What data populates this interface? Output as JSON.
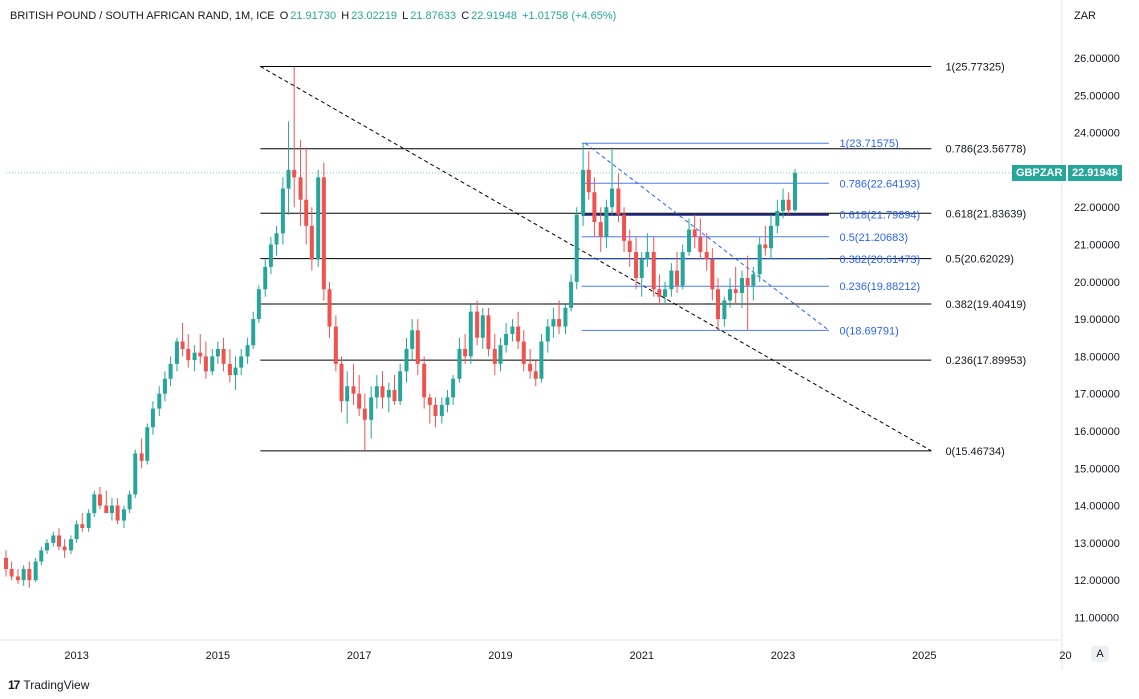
{
  "header": {
    "symbol": "BRITISH POUND / SOUTH AFRICAN RAND, 1M, ICE",
    "o_label": "O",
    "o_value": "21.91730",
    "h_label": "H",
    "h_value": "23.02219",
    "l_label": "L",
    "l_value": "21.87633",
    "c_label": "C",
    "c_value": "22.91948",
    "change": "+1.01758 (+4.65%)"
  },
  "currency_label": "ZAR",
  "auto_button": "A",
  "footer": {
    "brand": "TradingView",
    "logo": "17"
  },
  "price_tag": {
    "symbol": "GBPZAR",
    "price": "22.91948"
  },
  "colors": {
    "up": "#26a69a",
    "down": "#ef5350",
    "fib_outer": "#000000",
    "fib_inner": "#2962ff"
  },
  "chart_data": {
    "type": "candlestick",
    "y_axis": {
      "min": 10.5,
      "max": 26.8,
      "ticks": [
        "26.00000",
        "25.00000",
        "24.00000",
        "23.00000",
        "22.00000",
        "21.00000",
        "20.00000",
        "19.00000",
        "18.00000",
        "17.00000",
        "16.00000",
        "15.00000",
        "14.00000",
        "13.00000",
        "12.00000",
        "11.00000"
      ]
    },
    "x_axis": {
      "ticks": [
        "2013",
        "2015",
        "2017",
        "2019",
        "2021",
        "2023",
        "2025",
        "20"
      ]
    },
    "ohlc": [
      [
        2012.0,
        12.6,
        12.8,
        12.1,
        12.3
      ],
      [
        2012.08,
        12.3,
        12.5,
        12.0,
        12.1
      ],
      [
        2012.17,
        12.1,
        12.3,
        11.9,
        12.0
      ],
      [
        2012.25,
        12.0,
        12.4,
        11.85,
        12.3
      ],
      [
        2012.33,
        12.3,
        12.5,
        11.8,
        12.0
      ],
      [
        2012.42,
        12.0,
        12.6,
        11.95,
        12.5
      ],
      [
        2012.5,
        12.5,
        12.9,
        12.4,
        12.8
      ],
      [
        2012.58,
        12.8,
        13.1,
        12.7,
        13.0
      ],
      [
        2012.67,
        13.0,
        13.3,
        12.9,
        13.2
      ],
      [
        2012.75,
        13.2,
        13.4,
        12.8,
        12.9
      ],
      [
        2012.83,
        12.9,
        13.1,
        12.6,
        12.8
      ],
      [
        2012.92,
        12.8,
        13.2,
        12.7,
        13.1
      ],
      [
        2013.0,
        13.1,
        13.6,
        13.0,
        13.5
      ],
      [
        2013.08,
        13.5,
        13.8,
        13.3,
        13.4
      ],
      [
        2013.17,
        13.4,
        13.9,
        13.3,
        13.8
      ],
      [
        2013.25,
        13.8,
        14.4,
        13.7,
        14.3
      ],
      [
        2013.33,
        14.3,
        14.5,
        13.9,
        14.0
      ],
      [
        2013.42,
        14.0,
        14.4,
        13.8,
        13.8
      ],
      [
        2013.5,
        13.8,
        14.2,
        13.6,
        14.0
      ],
      [
        2013.58,
        14.0,
        14.2,
        13.5,
        13.6
      ],
      [
        2013.67,
        13.6,
        14.0,
        13.4,
        13.9
      ],
      [
        2013.75,
        13.9,
        14.4,
        13.8,
        14.3
      ],
      [
        2013.83,
        14.3,
        15.5,
        14.2,
        15.4
      ],
      [
        2013.92,
        15.4,
        15.8,
        15.0,
        15.2
      ],
      [
        2014.0,
        15.2,
        16.2,
        15.1,
        16.1
      ],
      [
        2014.08,
        16.1,
        16.8,
        15.9,
        16.6
      ],
      [
        2014.17,
        16.6,
        17.2,
        16.4,
        17.0
      ],
      [
        2014.25,
        17.0,
        17.6,
        16.8,
        17.4
      ],
      [
        2014.33,
        17.4,
        18.0,
        17.2,
        17.8
      ],
      [
        2014.42,
        17.8,
        18.5,
        17.6,
        18.4
      ],
      [
        2014.5,
        18.4,
        18.9,
        18.0,
        18.2
      ],
      [
        2014.58,
        18.2,
        18.6,
        17.7,
        17.9
      ],
      [
        2014.67,
        17.9,
        18.3,
        17.6,
        18.1
      ],
      [
        2014.75,
        18.1,
        18.6,
        17.8,
        18.0
      ],
      [
        2014.83,
        18.0,
        18.4,
        17.4,
        17.6
      ],
      [
        2014.92,
        17.6,
        18.2,
        17.5,
        18.0
      ],
      [
        2015.0,
        18.0,
        18.4,
        17.8,
        18.2
      ],
      [
        2015.08,
        18.2,
        18.5,
        17.6,
        17.8
      ],
      [
        2015.17,
        17.8,
        18.2,
        17.3,
        17.5
      ],
      [
        2015.25,
        17.5,
        18.0,
        17.1,
        17.7
      ],
      [
        2015.33,
        17.7,
        18.2,
        17.5,
        18.0
      ],
      [
        2015.42,
        18.0,
        18.5,
        17.8,
        18.3
      ],
      [
        2015.5,
        18.3,
        19.2,
        18.2,
        19.0
      ],
      [
        2015.58,
        19.0,
        19.9,
        18.9,
        19.8
      ],
      [
        2015.67,
        19.8,
        20.6,
        19.6,
        20.4
      ],
      [
        2015.75,
        20.4,
        21.2,
        20.2,
        21.0
      ],
      [
        2015.83,
        21.0,
        21.5,
        20.7,
        21.3
      ],
      [
        2015.92,
        21.3,
        22.8,
        21.0,
        22.5
      ],
      [
        2016.0,
        22.5,
        24.3,
        21.8,
        23.0
      ],
      [
        2016.08,
        23.0,
        25.77,
        22.0,
        22.8
      ],
      [
        2016.17,
        22.8,
        23.8,
        21.5,
        22.2
      ],
      [
        2016.25,
        22.2,
        23.6,
        21.0,
        21.5
      ],
      [
        2016.33,
        21.5,
        22.0,
        20.3,
        20.6
      ],
      [
        2016.42,
        20.6,
        23.0,
        20.4,
        22.8
      ],
      [
        2016.5,
        22.8,
        23.2,
        19.5,
        19.8
      ],
      [
        2016.58,
        19.8,
        20.0,
        18.5,
        18.8
      ],
      [
        2016.67,
        18.8,
        19.1,
        17.6,
        17.8
      ],
      [
        2016.75,
        17.8,
        18.0,
        16.5,
        16.8
      ],
      [
        2016.83,
        16.8,
        17.6,
        16.2,
        17.2
      ],
      [
        2016.92,
        17.2,
        17.8,
        16.7,
        17.0
      ],
      [
        2017.0,
        17.0,
        17.5,
        16.4,
        16.6
      ],
      [
        2017.08,
        16.6,
        17.0,
        15.47,
        16.3
      ],
      [
        2017.17,
        16.3,
        17.2,
        15.8,
        16.9
      ],
      [
        2017.25,
        16.9,
        17.5,
        16.6,
        17.2
      ],
      [
        2017.33,
        17.2,
        17.6,
        16.6,
        16.9
      ],
      [
        2017.42,
        16.9,
        17.3,
        16.5,
        17.1
      ],
      [
        2017.5,
        17.1,
        17.5,
        16.7,
        16.8
      ],
      [
        2017.58,
        16.8,
        17.8,
        16.7,
        17.6
      ],
      [
        2017.67,
        17.6,
        18.5,
        17.3,
        18.2
      ],
      [
        2017.75,
        18.2,
        19.0,
        17.9,
        18.7
      ],
      [
        2017.83,
        18.7,
        19.0,
        17.5,
        17.8
      ],
      [
        2017.92,
        17.8,
        18.0,
        16.6,
        16.9
      ],
      [
        2018.0,
        16.9,
        17.0,
        16.2,
        16.7
      ],
      [
        2018.08,
        16.7,
        16.9,
        16.1,
        16.4
      ],
      [
        2018.17,
        16.4,
        16.9,
        16.2,
        16.7
      ],
      [
        2018.25,
        16.7,
        17.1,
        16.5,
        16.9
      ],
      [
        2018.33,
        16.9,
        17.5,
        16.7,
        17.4
      ],
      [
        2018.42,
        17.4,
        18.5,
        17.3,
        18.2
      ],
      [
        2018.5,
        18.2,
        18.6,
        17.8,
        18.0
      ],
      [
        2018.58,
        18.0,
        19.4,
        17.8,
        19.2
      ],
      [
        2018.67,
        19.2,
        19.5,
        18.3,
        18.5
      ],
      [
        2018.75,
        18.5,
        19.3,
        18.2,
        19.1
      ],
      [
        2018.83,
        19.1,
        19.3,
        18.0,
        18.2
      ],
      [
        2018.92,
        18.2,
        18.6,
        17.5,
        17.8
      ],
      [
        2019.0,
        17.8,
        18.5,
        17.6,
        18.3
      ],
      [
        2019.08,
        18.3,
        18.9,
        18.1,
        18.6
      ],
      [
        2019.17,
        18.6,
        19.0,
        18.4,
        18.8
      ],
      [
        2019.25,
        18.8,
        19.2,
        18.2,
        18.4
      ],
      [
        2019.33,
        18.4,
        18.7,
        17.6,
        17.8
      ],
      [
        2019.42,
        17.8,
        18.2,
        17.4,
        17.6
      ],
      [
        2019.5,
        17.6,
        17.9,
        17.2,
        17.4
      ],
      [
        2019.58,
        17.4,
        18.6,
        17.3,
        18.4
      ],
      [
        2019.67,
        18.4,
        19.0,
        18.1,
        18.8
      ],
      [
        2019.75,
        18.8,
        19.3,
        18.5,
        19.0
      ],
      [
        2019.83,
        19.0,
        19.5,
        18.6,
        18.8
      ],
      [
        2019.92,
        18.8,
        19.4,
        18.6,
        19.3
      ],
      [
        2020.0,
        19.3,
        20.2,
        19.2,
        20.0
      ],
      [
        2020.08,
        20.0,
        22.0,
        19.8,
        21.8
      ],
      [
        2020.17,
        21.8,
        23.72,
        21.5,
        23.0
      ],
      [
        2020.25,
        23.0,
        23.5,
        22.2,
        22.4
      ],
      [
        2020.33,
        22.4,
        22.8,
        21.2,
        21.6
      ],
      [
        2020.42,
        21.6,
        22.0,
        20.8,
        21.2
      ],
      [
        2020.5,
        21.2,
        22.2,
        20.9,
        22.0
      ],
      [
        2020.58,
        22.0,
        23.6,
        21.8,
        22.5
      ],
      [
        2020.67,
        22.5,
        22.9,
        21.6,
        21.8
      ],
      [
        2020.75,
        21.8,
        22.0,
        20.8,
        21.1
      ],
      [
        2020.83,
        21.1,
        21.4,
        20.4,
        20.8
      ],
      [
        2020.92,
        20.8,
        21.2,
        19.8,
        20.1
      ],
      [
        2021.0,
        20.1,
        20.8,
        19.6,
        20.6
      ],
      [
        2021.08,
        20.6,
        21.3,
        20.4,
        20.8
      ],
      [
        2021.17,
        20.8,
        21.2,
        19.6,
        19.8
      ],
      [
        2021.25,
        19.8,
        20.2,
        19.4,
        19.6
      ],
      [
        2021.33,
        19.6,
        20.0,
        19.4,
        19.8
      ],
      [
        2021.42,
        19.8,
        20.5,
        19.6,
        20.3
      ],
      [
        2021.5,
        20.3,
        20.8,
        19.7,
        19.9
      ],
      [
        2021.58,
        19.9,
        21.0,
        19.8,
        20.8
      ],
      [
        2021.67,
        20.8,
        21.7,
        20.7,
        21.4
      ],
      [
        2021.75,
        21.4,
        21.8,
        20.9,
        21.2
      ],
      [
        2021.83,
        21.2,
        21.7,
        20.6,
        20.8
      ],
      [
        2021.92,
        20.8,
        21.3,
        20.3,
        20.6
      ],
      [
        2022.0,
        20.6,
        20.9,
        19.5,
        19.8
      ],
      [
        2022.08,
        19.8,
        20.1,
        18.7,
        19.0
      ],
      [
        2022.17,
        19.0,
        19.6,
        18.8,
        19.5
      ],
      [
        2022.25,
        19.5,
        20.1,
        19.3,
        19.8
      ],
      [
        2022.33,
        19.8,
        20.4,
        19.4,
        19.7
      ],
      [
        2022.42,
        19.7,
        20.3,
        19.3,
        20.1
      ],
      [
        2022.5,
        20.1,
        20.7,
        18.7,
        19.9
      ],
      [
        2022.58,
        19.9,
        20.4,
        19.5,
        20.2
      ],
      [
        2022.67,
        20.2,
        21.2,
        20.0,
        21.0
      ],
      [
        2022.75,
        21.0,
        21.5,
        20.7,
        20.9
      ],
      [
        2022.83,
        20.9,
        21.8,
        20.6,
        21.5
      ],
      [
        2022.92,
        21.5,
        22.2,
        21.3,
        21.9
      ],
      [
        2023.0,
        21.9,
        22.5,
        21.7,
        22.2
      ],
      [
        2023.08,
        22.2,
        22.4,
        21.8,
        21.92
      ],
      [
        2023.17,
        21.92,
        23.02,
        21.88,
        22.92
      ]
    ],
    "fib_outer": [
      {
        "label": "1(25.77325)",
        "value": 25.77325
      },
      {
        "label": "0.786(23.56778)",
        "value": 23.56778
      },
      {
        "label": "0.618(21.83639)",
        "value": 21.83639
      },
      {
        "label": "0.5(20.62029)",
        "value": 20.62029
      },
      {
        "label": "0.382(19.40419)",
        "value": 19.40419
      },
      {
        "label": "0.236(17.89953)",
        "value": 17.89953
      },
      {
        "label": "0(15.46734)",
        "value": 15.46734
      }
    ],
    "fib_inner": [
      {
        "label": "1(23.71575)",
        "value": 23.71575
      },
      {
        "label": "0.786(22.64193)",
        "value": 22.64193
      },
      {
        "label": "0.618(21.79894)",
        "value": 21.79894
      },
      {
        "label": "0.5(21.20683)",
        "value": 21.20683
      },
      {
        "label": "0.382(20.61473)",
        "value": 20.61473
      },
      {
        "label": "0.236(19.88212)",
        "value": 19.88212
      },
      {
        "label": "0(18.69791)",
        "value": 18.69791
      }
    ],
    "fib_outer_span": {
      "from": 2015.6,
      "to": 2025.1,
      "label_at": 2025.3
    },
    "fib_inner_span": {
      "from": 2020.15,
      "to": 2023.65,
      "label_at": 2023.8
    },
    "trend_outer": [
      [
        2015.6,
        25.77325
      ],
      [
        2025.1,
        15.46734
      ]
    ],
    "trend_inner": [
      [
        2020.2,
        23.71575
      ],
      [
        2023.65,
        18.69791
      ]
    ]
  }
}
